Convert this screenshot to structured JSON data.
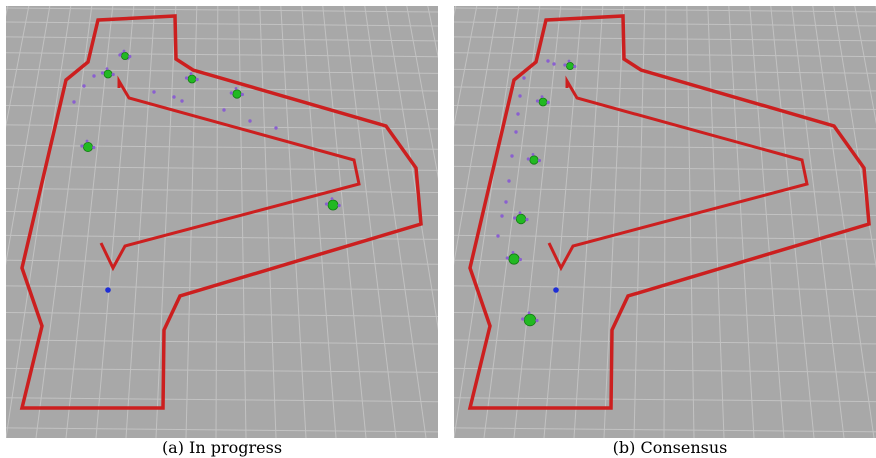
{
  "figure": {
    "panels": [
      {
        "id": "a",
        "caption": "(a) In progress",
        "state": "in-progress",
        "robot_count": 6,
        "robot_state": "scattered along corridor"
      },
      {
        "id": "b",
        "caption": "(b) Consensus",
        "state": "consensus",
        "robot_count": 6,
        "robot_state": "aligned in a line"
      }
    ],
    "colors": {
      "floor": "#a8a8a8",
      "grid": "#c2c2c2",
      "wall": "#cc1f1f",
      "robot": "#22b922",
      "trail": "#8a5fd0",
      "goal": "#1e2ed6"
    }
  }
}
